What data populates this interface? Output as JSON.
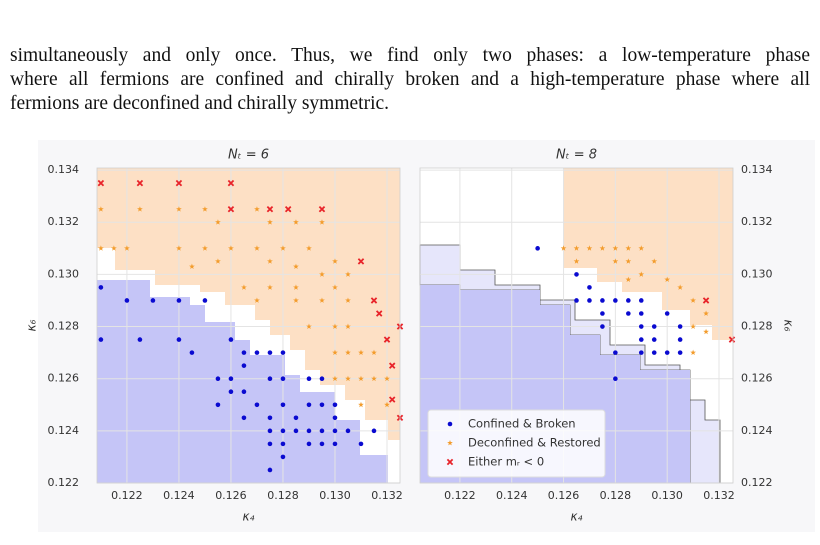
{
  "text": {
    "lines": [
      "simultaneously and only once.  Thus, we find only two phases:  a low-temperature phase",
      "where all fermions are confined and chirally broken and a high-temperature phase where all",
      "fermions are deconfined and chirally symmetric."
    ]
  },
  "chart_data": [
    {
      "type": "scatter",
      "title": "Nₜ = 6",
      "x_label": "κ₄",
      "y_label": "κ₆",
      "xlim": [
        0.12085,
        0.1325
      ],
      "ylim": [
        0.122,
        0.13408
      ],
      "xticks": [
        0.122,
        0.124,
        0.126,
        0.128,
        {
          "value": 0.13,
          "label": "0.130"
        },
        0.132
      ],
      "yticks": [
        0.122,
        0.124,
        0.126,
        0.128,
        {
          "value": 0.13,
          "label": "0.130"
        },
        0.132,
        0.134
      ],
      "yaxis_position": "left",
      "grid": true,
      "series": [
        {
          "color": "#0a0ad0",
          "marker": "o",
          "x": [
            0.121,
            0.122,
            0.123,
            0.124,
            0.125,
            0.121,
            0.1225,
            0.124,
            0.1245,
            0.126,
            0.1265,
            0.127,
            0.1275,
            0.128,
            0.1255,
            0.126,
            0.1265,
            0.1275,
            0.128,
            0.129,
            0.1295,
            0.126,
            0.1265,
            0.1255,
            0.127,
            0.128,
            0.129,
            0.1295,
            0.13,
            0.1265,
            0.1275,
            0.1285,
            0.13,
            0.1275,
            0.128,
            0.1285,
            0.129,
            0.1295,
            0.13,
            0.1305,
            0.1315,
            0.1275,
            0.128,
            0.129,
            0.1295,
            0.13,
            0.131,
            0.1275,
            0.128
          ],
          "values": [
            0.1295,
            0.129,
            0.129,
            0.129,
            0.129,
            0.1275,
            0.1275,
            0.1275,
            0.127,
            0.1275,
            0.127,
            0.127,
            0.127,
            0.127,
            0.126,
            0.126,
            0.1265,
            0.126,
            0.126,
            0.126,
            0.126,
            0.1255,
            0.1255,
            0.125,
            0.125,
            0.125,
            0.125,
            0.125,
            0.125,
            0.1245,
            0.1245,
            0.1245,
            0.1245,
            0.124,
            0.124,
            0.124,
            0.124,
            0.124,
            0.124,
            0.124,
            0.124,
            0.1235,
            0.1235,
            0.1235,
            0.1235,
            0.1235,
            0.1235,
            0.1225,
            0.123
          ]
        },
        {
          "color": "#f39c2c",
          "marker": "*",
          "x": [
            0.121,
            0.1225,
            0.124,
            0.125,
            0.1255,
            0.127,
            0.1275,
            0.1285,
            0.1295,
            0.121,
            0.1215,
            0.122,
            0.124,
            0.125,
            0.126,
            0.127,
            0.128,
            0.129,
            0.13,
            0.1245,
            0.1255,
            0.1275,
            0.1285,
            0.1295,
            0.1305,
            0.1265,
            0.1275,
            0.1285,
            0.13,
            0.127,
            0.1285,
            0.1295,
            0.1305,
            0.129,
            0.13,
            0.1305,
            0.13,
            0.1305,
            0.131,
            0.1315,
            0.13,
            0.1305,
            0.131,
            0.1315,
            0.132,
            0.131,
            0.132
          ],
          "values": [
            0.1325,
            0.1325,
            0.1325,
            0.1325,
            0.132,
            0.1325,
            0.132,
            0.132,
            0.132,
            0.131,
            0.131,
            0.131,
            0.131,
            0.131,
            0.131,
            0.131,
            0.131,
            0.131,
            0.1305,
            0.1303,
            0.1305,
            0.1305,
            0.1303,
            0.13,
            0.13,
            0.1295,
            0.1295,
            0.1295,
            0.1295,
            0.129,
            0.129,
            0.129,
            0.129,
            0.128,
            0.128,
            0.128,
            0.127,
            0.127,
            0.127,
            0.127,
            0.126,
            0.126,
            0.126,
            0.126,
            0.126,
            0.125,
            0.125
          ]
        },
        {
          "color": "#e8242a",
          "marker": "x",
          "x": [
            0.121,
            0.1225,
            0.124,
            0.126,
            0.126,
            0.1275,
            0.1282,
            0.1295,
            0.131,
            0.1315,
            0.1317,
            0.132,
            0.1325,
            0.1322,
            0.1322,
            0.1325
          ],
          "values": [
            0.1335,
            0.1335,
            0.1335,
            0.1335,
            0.1325,
            0.1325,
            0.1325,
            0.1325,
            0.1305,
            0.129,
            0.1285,
            0.1275,
            0.128,
            0.1265,
            0.1252,
            0.1245
          ]
        }
      ]
    },
    {
      "type": "scatter",
      "title": "Nₜ = 8",
      "x_label": "κ₄",
      "y_label": "κ₆",
      "xlim": [
        0.12046,
        0.13254
      ],
      "ylim": [
        0.122,
        0.13408
      ],
      "xticks": [
        0.122,
        0.124,
        0.126,
        0.128,
        {
          "value": 0.13,
          "label": "0.130"
        },
        0.132
      ],
      "yticks": [
        0.122,
        0.124,
        0.126,
        0.128,
        {
          "value": 0.13,
          "label": "0.130"
        },
        0.132,
        0.134
      ],
      "yaxis_position": "right",
      "grid": true,
      "legend": "lower left",
      "series": [
        {
          "name": "Confined & Broken",
          "color": "#0a0ad0",
          "marker": "o",
          "x": [
            0.125,
            0.1265,
            0.127,
            0.1265,
            0.127,
            0.1275,
            0.128,
            0.1285,
            0.129,
            0.1275,
            0.1285,
            0.129,
            0.13,
            0.1275,
            0.129,
            0.1295,
            0.1305,
            0.129,
            0.1295,
            0.1305,
            0.128,
            0.129,
            0.1295,
            0.13,
            0.1305,
            0.128
          ],
          "values": [
            0.131,
            0.13,
            0.1295,
            0.129,
            0.129,
            0.129,
            0.129,
            0.129,
            0.129,
            0.1285,
            0.1285,
            0.1285,
            0.1285,
            0.128,
            0.128,
            0.128,
            0.128,
            0.1275,
            0.1275,
            0.1275,
            0.127,
            0.127,
            0.127,
            0.127,
            0.127,
            0.126
          ]
        },
        {
          "name": "Deconfined & Restored",
          "color": "#f39c2c",
          "marker": "*",
          "x": [
            0.126,
            0.1265,
            0.127,
            0.1275,
            0.128,
            0.1285,
            0.129,
            0.1265,
            0.128,
            0.1285,
            0.1295,
            0.129,
            0.1285,
            0.1305,
            0.13,
            0.131,
            0.1315,
            0.131,
            0.1315,
            0.131
          ],
          "values": [
            0.131,
            0.131,
            0.131,
            0.131,
            0.131,
            0.131,
            0.131,
            0.1305,
            0.1305,
            0.1305,
            0.1305,
            0.13,
            0.1298,
            0.1295,
            0.1298,
            0.129,
            0.1285,
            0.128,
            0.1278,
            0.127
          ]
        },
        {
          "name": "Either mᵣ < 0",
          "color": "#e8242a",
          "marker": "x",
          "x": [
            0.1315,
            0.1325
          ],
          "values": [
            0.129,
            0.1275
          ]
        }
      ]
    }
  ]
}
